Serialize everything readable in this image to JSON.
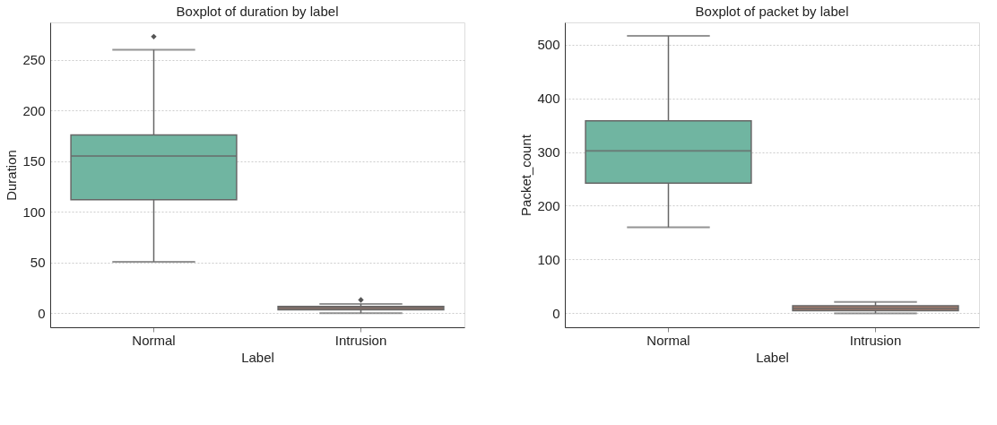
{
  "chart_data": [
    {
      "type": "box",
      "title": "Boxplot of duration by label",
      "xlabel": "Label",
      "ylabel": "Duration",
      "categories": [
        "Normal",
        "Intrusion"
      ],
      "colors": [
        "#70b5a1",
        "#a17a6b"
      ],
      "boxes": [
        {
          "low": 50.7,
          "q1": 112,
          "median": 155,
          "q3": 176,
          "high": 260,
          "outliers": [
            273
          ]
        },
        {
          "low": 0,
          "q1": 3.3,
          "median": 5,
          "q3": 6.6,
          "high": 9,
          "outliers": [
            13
          ]
        }
      ],
      "ylim": [
        -14,
        287
      ],
      "yticks": [
        0,
        50,
        100,
        150,
        200,
        250
      ],
      "grid": "y",
      "marker": "diamond"
    },
    {
      "type": "box",
      "title": "Boxplot of packet by label",
      "xlabel": "Label",
      "ylabel": "Packet_count",
      "categories": [
        "Normal",
        "Intrusion"
      ],
      "colors": [
        "#70b5a1",
        "#a17a6b"
      ],
      "boxes": [
        {
          "low": 160,
          "q1": 242,
          "median": 302,
          "q3": 358,
          "high": 516
        },
        {
          "low": 0,
          "q1": 5,
          "median": 9,
          "q3": 14,
          "high": 21
        }
      ],
      "ylim": [
        -26,
        541
      ],
      "yticks": [
        0,
        100,
        200,
        300,
        400,
        500
      ],
      "grid": "y"
    }
  ]
}
